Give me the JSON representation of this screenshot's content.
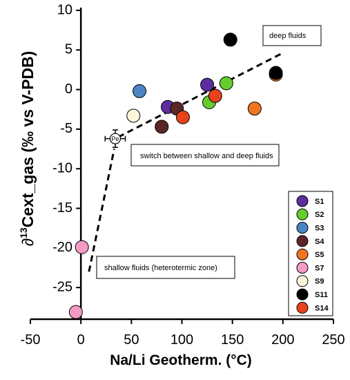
{
  "chart_data": {
    "type": "scatter",
    "xlabel": "Na/Li Geotherm. (°C)",
    "ylabel": "∂13Cext_gas (‰ vs V-PDB)",
    "ylabel_parts": {
      "symbol": "∂",
      "sup": "13",
      "rest": "Cext_gas (‰ vs V-PDB)"
    },
    "xlim": [
      -50,
      250
    ],
    "ylim": [
      -29,
      10
    ],
    "xticks": [
      -50,
      0,
      50,
      100,
      150,
      200,
      250
    ],
    "yticks": [
      10,
      5,
      0,
      -5,
      -10,
      -15,
      -20,
      -25
    ],
    "grid": false,
    "legend_position": "bottom-right",
    "series": [
      {
        "name": "S1",
        "color": "#5b2d9e",
        "points": [
          [
            86,
            -2.2
          ],
          [
            125,
            0.6
          ]
        ]
      },
      {
        "name": "S2",
        "color": "#66cc2e",
        "points": [
          [
            127,
            -1.6
          ],
          [
            144,
            0.8
          ]
        ]
      },
      {
        "name": "S3",
        "color": "#4a84c4",
        "points": [
          [
            58,
            -0.2
          ]
        ]
      },
      {
        "name": "S4",
        "color": "#5c2626",
        "points": [
          [
            80,
            -4.7
          ],
          [
            95,
            -2.4
          ]
        ]
      },
      {
        "name": "S5",
        "color": "#ef7522",
        "points": [
          [
            172,
            -2.4
          ],
          [
            193,
            1.9
          ]
        ]
      },
      {
        "name": "S7",
        "color": "#f39bc4",
        "points": [
          [
            1,
            -19.9
          ],
          [
            -5,
            -28.1
          ]
        ]
      },
      {
        "name": "S9",
        "color": "#fdf7dc",
        "points": [
          [
            52,
            -3.3
          ]
        ]
      },
      {
        "name": "S11",
        "color": "#000000",
        "points": [
          [
            148,
            6.3
          ],
          [
            193,
            2.1
          ]
        ]
      },
      {
        "name": "S14",
        "color": "#e6431a",
        "points": [
          [
            101,
            -3.5
          ],
          [
            133,
            -0.8
          ]
        ]
      }
    ],
    "pe_point": {
      "label": "Pe",
      "x": 34,
      "y": -6.2,
      "x_err": 10,
      "y_err": 1.1
    },
    "trend_lines": [
      {
        "name": "shallow",
        "points": [
          [
            8,
            -23
          ],
          [
            33,
            -7.5
          ]
        ]
      },
      {
        "name": "deep",
        "points": [
          [
            37,
            -6
          ],
          [
            198,
            4.5
          ]
        ]
      }
    ],
    "annotations": [
      "deep fluids",
      "switch between shallow and deep fluids",
      "shallow fluids (heterotermic zone)"
    ]
  }
}
